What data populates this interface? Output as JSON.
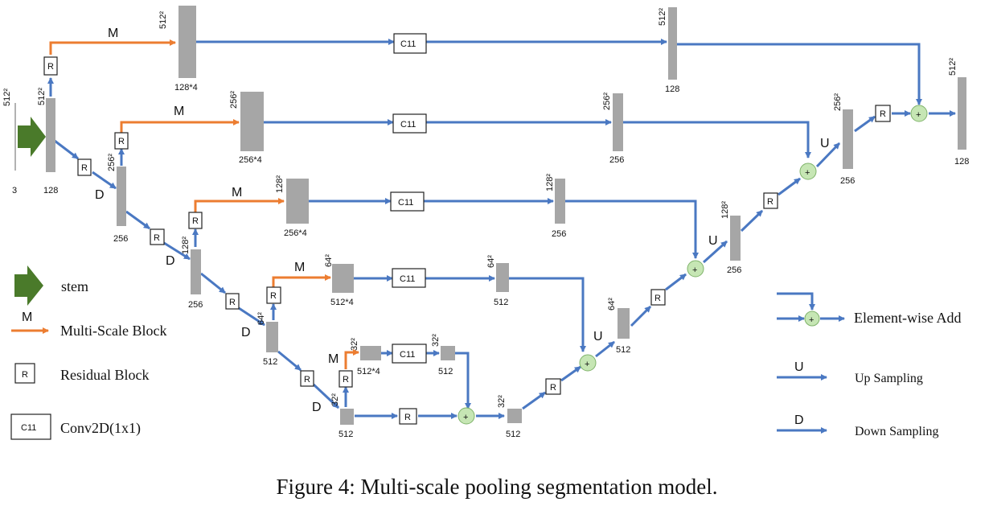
{
  "legend": {
    "stem": "stem",
    "m_letter": "M",
    "multi_scale": "Multi-Scale Block",
    "r_letter": "R",
    "residual": "Residual Block",
    "c11": "C11",
    "conv": "Conv2D(1x1)",
    "add": "Element-wise Add",
    "u_letter": "U",
    "up": "Up Sampling",
    "d_letter": "D",
    "down": "Down Sampling"
  },
  "caption": "Figure 4: Multi-scale pooling segmentation model.",
  "labels": {
    "plus": "+",
    "input_dim": "512²",
    "input_ch": "3",
    "e1_dim": "512²",
    "e1_ch": "128",
    "e2_dim": "256²",
    "e2_ch": "256",
    "e3_dim": "128²",
    "e3_ch": "256",
    "e4_dim": "64²",
    "e4_ch": "512",
    "e5_dim": "32²",
    "e5_ch": "512",
    "m1_dim": "512²",
    "m1_ch": "128*4",
    "m2_dim": "256²",
    "m2_ch": "256*4",
    "m3_dim": "128²",
    "m3_ch": "256*4",
    "m4_dim": "64²",
    "m4_ch": "512*4",
    "m5_dim": "32²",
    "m5_ch": "512*4",
    "c1_dim": "512²",
    "c1_ch": "128",
    "c2_dim": "256²",
    "c2_ch": "256",
    "c3_dim": "128²",
    "c3_ch": "256",
    "c4_dim": "64²",
    "c4_ch": "512",
    "c5_dim": "32²",
    "c5_ch": "512",
    "d5_dim": "32²",
    "d5_ch": "512",
    "d4_dim": "64²",
    "d4_ch": "512",
    "d3_dim": "128²",
    "d3_ch": "256",
    "d2_dim": "256²",
    "d2_ch": "256",
    "d1_dim": "512²",
    "d1_ch": "128"
  }
}
